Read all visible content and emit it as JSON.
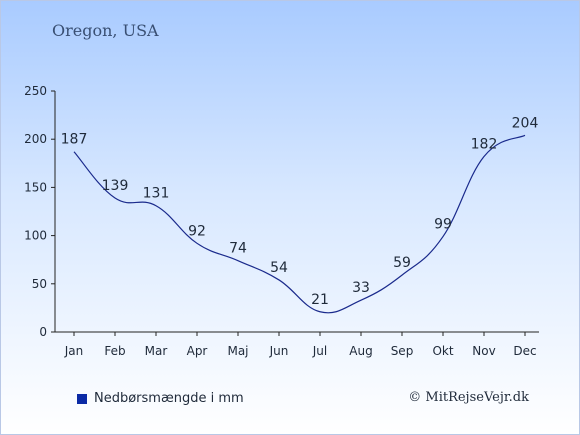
{
  "header": {
    "location": "Oregon, USA"
  },
  "legend": {
    "label": "Nedbørsmængde i mm",
    "swatch_color": "#0b2aa5"
  },
  "footer": {
    "copyright": "© MitRejseVejr.dk"
  },
  "colors": {
    "line": "#1a2a8c",
    "axis": "#222222",
    "label_text": "#1f2a3a"
  },
  "chart_data": {
    "type": "line",
    "categories": [
      "Jan",
      "Feb",
      "Mar",
      "Apr",
      "Maj",
      "Jun",
      "Jul",
      "Aug",
      "Sep",
      "Okt",
      "Nov",
      "Dec"
    ],
    "series": [
      {
        "name": "Nedbørsmængde i mm",
        "values": [
          187,
          139,
          131,
          92,
          74,
          54,
          21,
          33,
          59,
          99,
          182,
          204
        ]
      }
    ],
    "y_ticks": [
      0,
      50,
      100,
      150,
      200,
      250
    ],
    "ylim": [
      0,
      250
    ],
    "grid": false,
    "legend_position": "bottom-left",
    "data_labels": true
  }
}
